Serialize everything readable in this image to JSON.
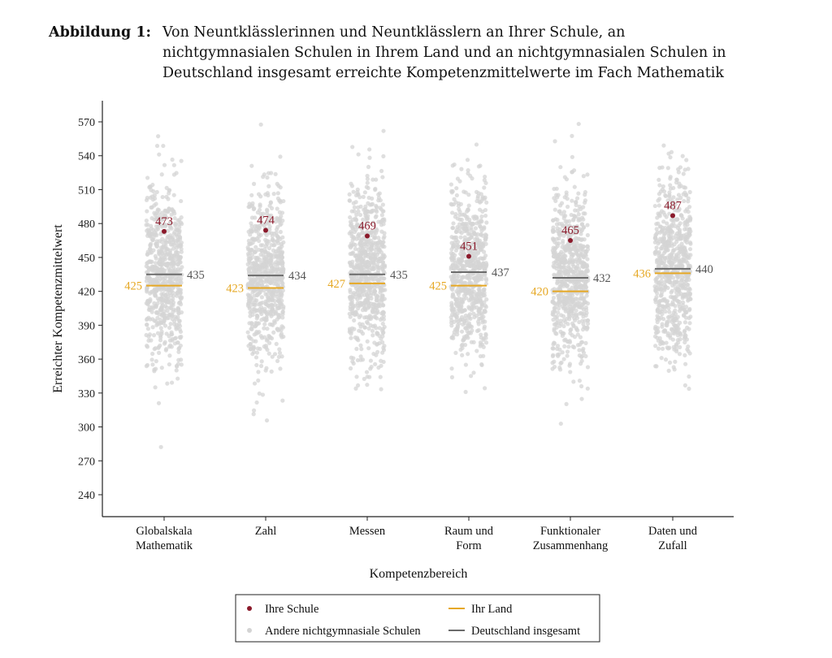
{
  "caption": {
    "label": "Abbildung 1:",
    "text": "Von Neuntklässlerinnen und Neuntklässlern an Ihrer Schule, an nichtgymnasialen Schulen in Ihrem Land und an nichtgymnasialen Schulen in Deutschland insgesamt erreichte Kompetenzmittelwerte im Fach Mathematik"
  },
  "chart_data": {
    "type": "scatter",
    "xlabel": "Kompetenzbereich",
    "ylabel": "Erreichter Kompetenzmittelwert",
    "ylim": [
      235,
      590
    ],
    "yticks": [
      240,
      270,
      300,
      330,
      360,
      390,
      420,
      450,
      480,
      510,
      540,
      570
    ],
    "categories": [
      [
        "Globalskala",
        "Mathematik"
      ],
      [
        "Zahl"
      ],
      [
        "Messen"
      ],
      [
        "Raum und",
        "Form"
      ],
      [
        "Funktionaler",
        "Zusammenhang"
      ],
      [
        "Daten und",
        "Zufall"
      ]
    ],
    "series": [
      {
        "name": "Ihre Schule",
        "kind": "point",
        "color": "#8b1a2b",
        "values": [
          473,
          474,
          469,
          451,
          465,
          487
        ]
      },
      {
        "name": "Ihr Land",
        "kind": "line",
        "color": "#e6a824",
        "values": [
          425,
          423,
          427,
          425,
          420,
          436
        ]
      },
      {
        "name": "Deutschland insgesamt",
        "kind": "line",
        "color": "#6b6b6b",
        "values": [
          435,
          434,
          435,
          437,
          432,
          440
        ]
      },
      {
        "name": "Andere nichtgymnasiale Schulen",
        "kind": "jitter-points",
        "color": "#d4d4d4"
      }
    ],
    "grid": false,
    "legend_placement": "bottom"
  }
}
